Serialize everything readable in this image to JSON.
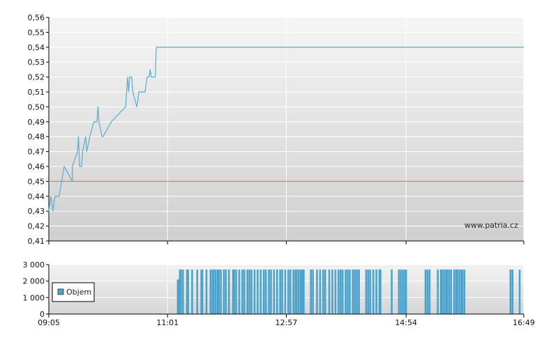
{
  "chart_data": [
    {
      "type": "line",
      "watermark": "www.patria.cz",
      "ylim": [
        0.41,
        0.56
      ],
      "yticks": [
        "0,41",
        "0,42",
        "0,43",
        "0,44",
        "0,45",
        "0,46",
        "0,47",
        "0,48",
        "0,49",
        "0,50",
        "0,51",
        "0,52",
        "0,53",
        "0,54",
        "0,55",
        "0,56"
      ],
      "xlim_minutes": [
        545,
        1009
      ],
      "xticks": [
        {
          "label": "09:05",
          "t": 545
        },
        {
          "label": "11:01",
          "t": 661
        },
        {
          "label": "12:57",
          "t": 777
        },
        {
          "label": "14:54",
          "t": 894
        },
        {
          "label": "16:49",
          "t": 1009
        }
      ],
      "grid": true,
      "reference_line": {
        "value": 0.45,
        "color": "#e57373"
      },
      "series_color": "#5fb1d6",
      "series": [
        {
          "points": [
            [
              545,
              0.43
            ],
            [
              547,
              0.44
            ],
            [
              549,
              0.43
            ],
            [
              551,
              0.44
            ],
            [
              555,
              0.44
            ],
            [
              560,
              0.46
            ],
            [
              568,
              0.45
            ],
            [
              568,
              0.46
            ],
            [
              573,
              0.47
            ],
            [
              574,
              0.48
            ],
            [
              575,
              0.46
            ],
            [
              577,
              0.46
            ],
            [
              578,
              0.47
            ],
            [
              581,
              0.48
            ],
            [
              582,
              0.47
            ],
            [
              585,
              0.48
            ],
            [
              589,
              0.49
            ],
            [
              592,
              0.49
            ],
            [
              593,
              0.5
            ],
            [
              594,
              0.49
            ],
            [
              597,
              0.48
            ],
            [
              598,
              0.48
            ],
            [
              606,
              0.49
            ],
            [
              620,
              0.5
            ],
            [
              621,
              0.51
            ],
            [
              622,
              0.52
            ],
            [
              623,
              0.51
            ],
            [
              624,
              0.52
            ],
            [
              625,
              0.52
            ],
            [
              626,
              0.52
            ],
            [
              627,
              0.51
            ],
            [
              631,
              0.5
            ],
            [
              633,
              0.51
            ],
            [
              634,
              0.51
            ],
            [
              635,
              0.51
            ],
            [
              636,
              0.51
            ],
            [
              638,
              0.51
            ],
            [
              639,
              0.51
            ],
            [
              641,
              0.52
            ],
            [
              643,
              0.52
            ],
            [
              644,
              0.525
            ],
            [
              645,
              0.52
            ],
            [
              649,
              0.52
            ],
            [
              650,
              0.54
            ],
            [
              1009,
              0.54
            ]
          ]
        }
      ]
    },
    {
      "type": "bar",
      "ylim": [
        0,
        3000
      ],
      "yticks": [
        "0",
        "1 000",
        "2 000",
        "3 000"
      ],
      "legend": "Objem",
      "legend_placement": "bottom-left",
      "color": "#4aa3cc",
      "bars": [
        [
          671,
          2100
        ],
        [
          672,
          2100
        ],
        [
          673,
          2700
        ],
        [
          674,
          2700
        ],
        [
          676,
          2700
        ],
        [
          680,
          2700
        ],
        [
          681,
          2700
        ],
        [
          685,
          2700
        ],
        [
          690,
          2700
        ],
        [
          694,
          2700
        ],
        [
          695,
          2700
        ],
        [
          699,
          2700
        ],
        [
          703,
          2700
        ],
        [
          705,
          2700
        ],
        [
          706,
          2700
        ],
        [
          708,
          2700
        ],
        [
          710,
          2700
        ],
        [
          711,
          2700
        ],
        [
          713,
          2700
        ],
        [
          716,
          2700
        ],
        [
          718,
          2700
        ],
        [
          721,
          2700
        ],
        [
          725,
          2700
        ],
        [
          726,
          2700
        ],
        [
          728,
          2700
        ],
        [
          731,
          2700
        ],
        [
          734,
          2700
        ],
        [
          736,
          2700
        ],
        [
          739,
          2700
        ],
        [
          741,
          2700
        ],
        [
          743,
          2700
        ],
        [
          746,
          2700
        ],
        [
          749,
          2700
        ],
        [
          752,
          2700
        ],
        [
          755,
          2700
        ],
        [
          757,
          2700
        ],
        [
          760,
          2700
        ],
        [
          762,
          2700
        ],
        [
          765,
          2700
        ],
        [
          768,
          2700
        ],
        [
          771,
          2700
        ],
        [
          773,
          2700
        ],
        [
          776,
          2700
        ],
        [
          779,
          2700
        ],
        [
          781,
          2700
        ],
        [
          784,
          2700
        ],
        [
          786,
          2700
        ],
        [
          787,
          2700
        ],
        [
          789,
          2700
        ],
        [
          791,
          2700
        ],
        [
          792,
          2700
        ],
        [
          793,
          2700
        ],
        [
          794,
          2700
        ],
        [
          801,
          2700
        ],
        [
          803,
          2700
        ],
        [
          807,
          2700
        ],
        [
          810,
          2700
        ],
        [
          813,
          2700
        ],
        [
          815,
          2700
        ],
        [
          819,
          2700
        ],
        [
          822,
          2700
        ],
        [
          825,
          2700
        ],
        [
          828,
          2700
        ],
        [
          830,
          2700
        ],
        [
          832,
          2700
        ],
        [
          835,
          2700
        ],
        [
          837,
          2700
        ],
        [
          839,
          2700
        ],
        [
          842,
          2700
        ],
        [
          844,
          2700
        ],
        [
          846,
          2700
        ],
        [
          848,
          2700
        ],
        [
          855,
          2700
        ],
        [
          857,
          2700
        ],
        [
          859,
          2700
        ],
        [
          862,
          2700
        ],
        [
          865,
          2700
        ],
        [
          868,
          2700
        ],
        [
          869,
          2700
        ],
        [
          880,
          2700
        ],
        [
          887,
          2700
        ],
        [
          889,
          2700
        ],
        [
          891,
          2700
        ],
        [
          893,
          2700
        ],
        [
          894,
          2700
        ],
        [
          913,
          2700
        ],
        [
          915,
          2700
        ],
        [
          917,
          2700
        ],
        [
          925,
          2700
        ],
        [
          928,
          2700
        ],
        [
          929,
          2700
        ],
        [
          931,
          2700
        ],
        [
          933,
          2700
        ],
        [
          934,
          2700
        ],
        [
          936,
          2700
        ],
        [
          938,
          2700
        ],
        [
          941,
          2700
        ],
        [
          943,
          2700
        ],
        [
          944,
          2700
        ],
        [
          946,
          2700
        ],
        [
          948,
          2700
        ],
        [
          949,
          2700
        ],
        [
          951,
          2700
        ],
        [
          996,
          2700
        ],
        [
          998,
          2700
        ],
        [
          1005,
          2700
        ]
      ]
    }
  ]
}
